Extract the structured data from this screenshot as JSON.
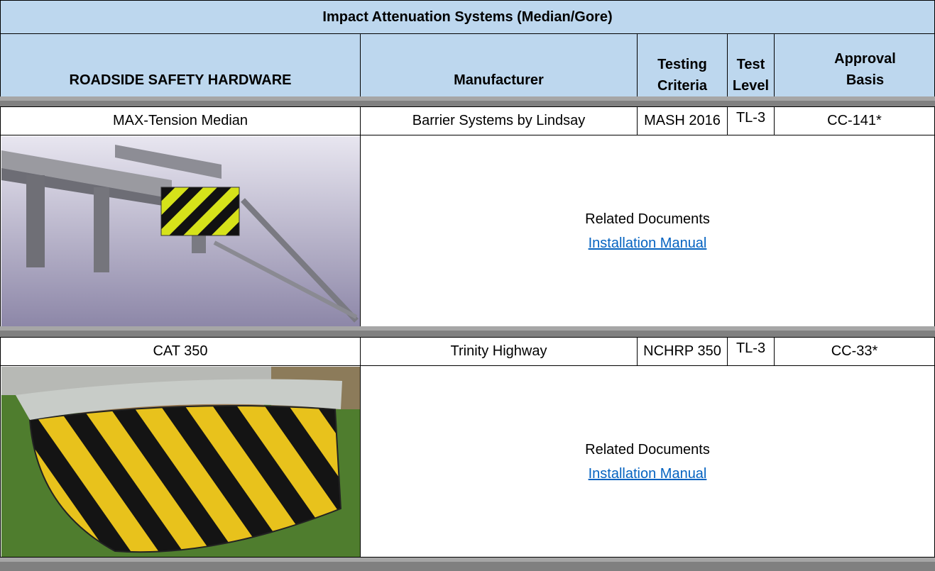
{
  "title": "Impact Attenuation Systems (Median/Gore)",
  "headers": [
    "ROADSIDE SAFETY HARDWARE",
    "Manufacturer",
    "Testing Criteria",
    "Test Level",
    "Approval Basis"
  ],
  "items": [
    {
      "name": "MAX-Tension Median",
      "manufacturer": "Barrier Systems by Lindsay",
      "criteria": "MASH 2016",
      "level": "TL-3",
      "basis": "CC-141*",
      "docs_label": "Related Documents",
      "link": "Installation Manual"
    },
    {
      "name": "CAT 350",
      "manufacturer": "Trinity Highway",
      "criteria": "NCHRP 350",
      "level": "TL-3",
      "basis": "CC-33*",
      "docs_label": "Related Documents",
      "link": "Installation Manual"
    }
  ]
}
